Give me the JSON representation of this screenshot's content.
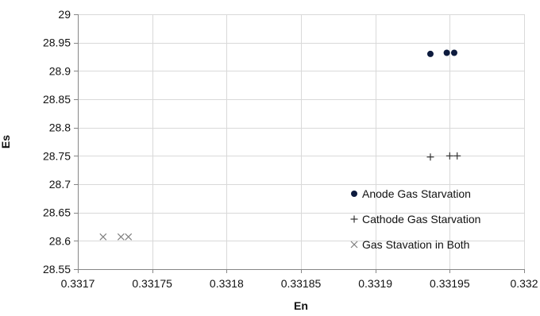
{
  "chart_data": {
    "type": "scatter",
    "title": "",
    "xlabel": "En",
    "ylabel": "Es",
    "xlim": [
      0.3317,
      0.332
    ],
    "ylim": [
      28.55,
      29
    ],
    "xticks": [
      "0.3317",
      "0.33175",
      "0.3318",
      "0.33185",
      "0.3319",
      "0.33195",
      "0.332"
    ],
    "yticks": [
      "28.55",
      "28.6",
      "28.65",
      "28.7",
      "28.75",
      "28.8",
      "28.85",
      "28.9",
      "28.95",
      "29"
    ],
    "xtick_values": [
      0.3317,
      0.33175,
      0.3318,
      0.33185,
      0.3319,
      0.33195,
      0.332
    ],
    "ytick_values": [
      28.55,
      28.6,
      28.65,
      28.7,
      28.75,
      28.8,
      28.85,
      28.9,
      28.95,
      29
    ],
    "grid": true,
    "legend_position": "bottom-right",
    "series": [
      {
        "name": "Anode Gas Starvation",
        "marker": "circle",
        "color": "#0d1b3e",
        "points": [
          {
            "x": 0.331937,
            "y": 28.93
          },
          {
            "x": 0.331948,
            "y": 28.932
          },
          {
            "x": 0.331953,
            "y": 28.932
          }
        ]
      },
      {
        "name": "Cathode Gas Starvation",
        "marker": "plus",
        "color": "#333333",
        "points": [
          {
            "x": 0.331937,
            "y": 28.748
          },
          {
            "x": 0.33195,
            "y": 28.75
          },
          {
            "x": 0.331955,
            "y": 28.75
          }
        ]
      },
      {
        "name": "Gas Stavation  in Both",
        "marker": "x",
        "color": "#7f7f7f",
        "points": [
          {
            "x": 0.331717,
            "y": 28.607
          },
          {
            "x": 0.331729,
            "y": 28.607
          },
          {
            "x": 0.331734,
            "y": 28.607
          }
        ]
      }
    ]
  }
}
